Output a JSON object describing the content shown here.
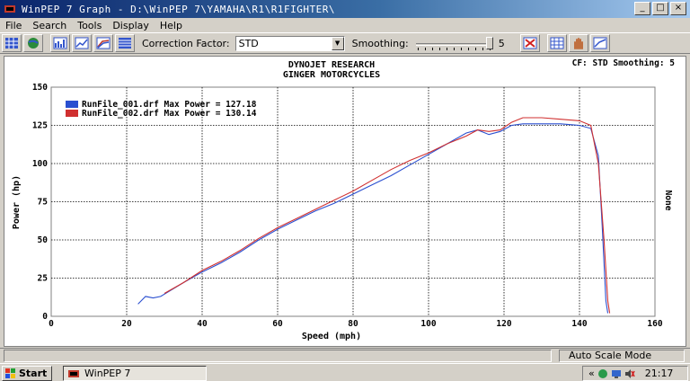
{
  "window": {
    "title": "WinPEP 7    Graph - D:\\WinPEP 7\\YAMAHA\\R1\\R1FIGHTER\\",
    "controls": [
      "_",
      "□",
      "×"
    ]
  },
  "menu": [
    "File",
    "Search",
    "Tools",
    "Display",
    "Help"
  ],
  "toolbar": {
    "correction_label": "Correction Factor:",
    "correction_value": "STD",
    "smoothing_label": "Smoothing:",
    "smoothing_value": "5",
    "smoothing_level": 5
  },
  "graph": {
    "header_right": "CF: STD  Smoothing: 5",
    "right_axis_label": "None"
  },
  "chart_data": {
    "type": "line",
    "title": "DYNOJET RESEARCH",
    "subtitle": "GINGER MOTORCYCLES",
    "xlabel": "Speed (mph)",
    "ylabel": "Power (hp)",
    "xlim": [
      0,
      160
    ],
    "ylim": [
      0,
      150
    ],
    "xticks": [
      0,
      20,
      40,
      60,
      80,
      100,
      120,
      140,
      160
    ],
    "yticks": [
      0,
      25,
      50,
      75,
      100,
      125,
      150
    ],
    "grid": true,
    "legend_position": "top-left",
    "series": [
      {
        "name": "RunFile_001.drf Max Power = 127.18",
        "color": "#2a4fd0",
        "x": [
          23,
          25,
          27,
          29,
          31,
          35,
          40,
          45,
          50,
          55,
          60,
          65,
          70,
          75,
          80,
          85,
          90,
          95,
          100,
          105,
          110,
          113,
          116,
          119,
          122,
          125,
          130,
          135,
          140,
          143,
          145,
          146,
          147,
          147.5
        ],
        "y": [
          8,
          13,
          12,
          13,
          16,
          22,
          29,
          35,
          42,
          50,
          57,
          63,
          69,
          74,
          80,
          86,
          92,
          99,
          106,
          113,
          120,
          122,
          119,
          121,
          125,
          126,
          126,
          126,
          125,
          123,
          105,
          60,
          10,
          2
        ]
      },
      {
        "name": "RunFile_002.drf Max Power = 130.14",
        "color": "#d03030",
        "x": [
          30,
          35,
          40,
          45,
          50,
          55,
          60,
          65,
          70,
          75,
          80,
          85,
          90,
          95,
          100,
          105,
          110,
          113,
          116,
          119,
          122,
          125,
          130,
          135,
          140,
          143,
          145,
          146.5,
          147.5,
          148
        ],
        "y": [
          15,
          22,
          30,
          36,
          43,
          51,
          58,
          64,
          70,
          76,
          82,
          89,
          96,
          102,
          107,
          113,
          118,
          122,
          121,
          122,
          127,
          130,
          130,
          129,
          128,
          125,
          100,
          50,
          10,
          2
        ]
      }
    ]
  },
  "statusbar": {
    "mode": "Auto Scale Mode"
  },
  "taskbar": {
    "start": "Start",
    "task": "WinPEP 7",
    "clock": "21:17",
    "tray_text": "«"
  }
}
